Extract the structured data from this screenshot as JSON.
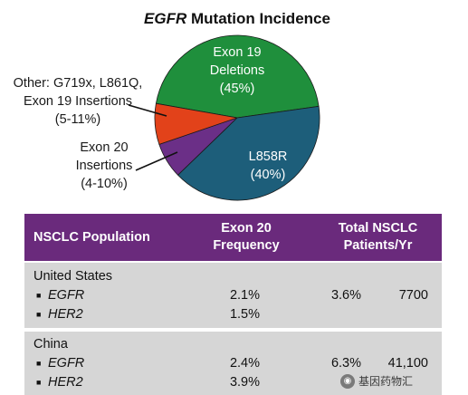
{
  "chart_data": {
    "type": "pie",
    "title_italic": "EGFR",
    "title_rest": " Mutation Incidence",
    "slices": [
      {
        "lines": [
          "Exon 19",
          "Deletions",
          "(45%)"
        ],
        "value": 45,
        "color": "#1f8f3c"
      },
      {
        "lines": [
          "L858R",
          "(40%)"
        ],
        "value": 40,
        "color": "#1d5e7a"
      },
      {
        "lines": [
          "Exon 20",
          "Insertions",
          "(4-10%)"
        ],
        "value": 7,
        "color": "#6b2f87"
      },
      {
        "lines": [
          "Other: G719x, L861Q,",
          "Exon 19 Insertions",
          "(5-11%)"
        ],
        "value": 8,
        "color": "#e2421a"
      }
    ]
  },
  "table": {
    "headers": {
      "population": "NSCLC Population",
      "freq": [
        "Exon 20",
        "Frequency"
      ],
      "total": [
        "Total NSCLC",
        "Patients/Yr"
      ]
    },
    "groups": [
      {
        "name": "United States",
        "rows": [
          {
            "gene": "EGFR",
            "freq": "2.1%",
            "pct": "3.6%",
            "count": "7700"
          },
          {
            "gene": "HER2",
            "freq": "1.5%",
            "pct": "",
            "count": ""
          }
        ]
      },
      {
        "name": "China",
        "rows": [
          {
            "gene": "EGFR",
            "freq": "2.4%",
            "pct": "6.3%",
            "count": "41,100"
          },
          {
            "gene": "HER2",
            "freq": "3.9%",
            "pct": "",
            "count": ""
          }
        ]
      }
    ],
    "bullet": "■"
  },
  "watermark": {
    "text": "基因药物汇"
  }
}
